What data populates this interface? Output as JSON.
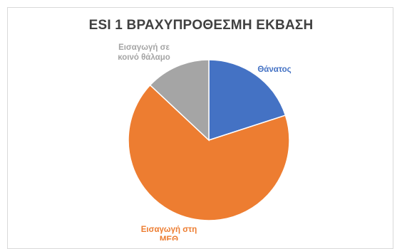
{
  "chart_data": {
    "type": "pie",
    "title": "ESI 1 ΒΡΑΧΥΠΡΟΘΕΣΜΗ ΕΚΒΑΣΗ",
    "categories": [
      "Θάνατος",
      "Εισαγωγή στη ΜΕΘ",
      "Εισαγωγή σε κοινό θάλαμο"
    ],
    "values": [
      20,
      67,
      13
    ],
    "colors": [
      "#4472C4",
      "#ED7D31",
      "#A5A5A5"
    ],
    "label_text_colors": [
      "#4472C4",
      "#ED7D31",
      "#A5A5A5"
    ],
    "legend": "none",
    "data_labels": "category names outside slices"
  }
}
